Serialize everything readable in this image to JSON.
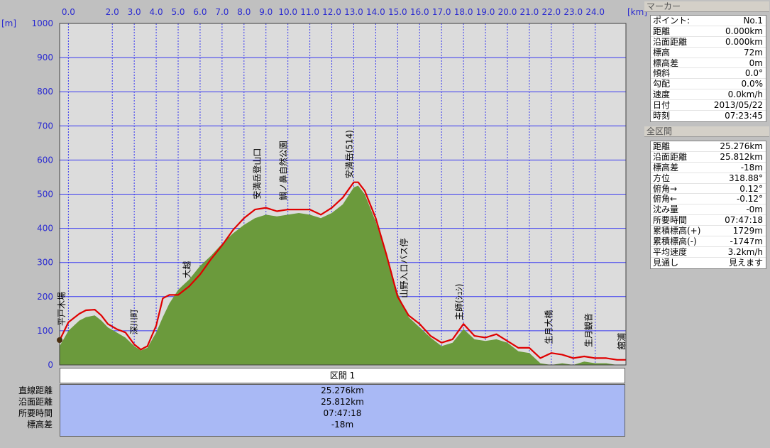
{
  "chart_data": {
    "type": "area",
    "x_unit": "[km]",
    "y_unit": "[m]",
    "xlim": [
      -0.4,
      25.4
    ],
    "ylim": [
      0,
      1000
    ],
    "x_ticks": [
      "0.0",
      "2.0",
      "3.0",
      "4.0",
      "5.0",
      "6.0",
      "7.0",
      "8.0",
      "9.0",
      "10.0",
      "11.0",
      "12.0",
      "13.0",
      "14.0",
      "15.0",
      "16.0",
      "17.0",
      "18.0",
      "19.0",
      "20.0",
      "21.0",
      "22.0",
      "23.0",
      "24.0"
    ],
    "y_ticks": [
      "1000",
      "900",
      "800",
      "700",
      "600",
      "500",
      "400",
      "300",
      "200",
      "100",
      "0"
    ],
    "grid": true,
    "series": [
      {
        "color": "#6b9a3c",
        "x": [
          -0.4,
          0.0,
          0.5,
          0.8,
          1.2,
          1.5,
          1.8,
          2.2,
          2.6,
          3.0,
          3.3,
          3.6,
          4.0,
          4.3,
          4.6,
          5.0,
          5.5,
          6.0,
          6.5,
          7.0,
          7.5,
          8.0,
          8.5,
          9.0,
          9.5,
          10.0,
          10.5,
          11.0,
          11.5,
          12.0,
          12.5,
          13.0,
          13.2,
          13.5,
          14.0,
          14.5,
          15.0,
          15.5,
          16.0,
          16.5,
          17.0,
          17.5,
          18.0,
          18.5,
          19.0,
          19.5,
          20.0,
          20.5,
          21.0,
          21.5,
          22.0,
          22.5,
          23.0,
          23.5,
          24.0,
          24.5,
          25.0,
          25.4
        ],
        "y": [
          55,
          100,
          130,
          140,
          145,
          130,
          110,
          95,
          80,
          55,
          42,
          50,
          95,
          140,
          180,
          220,
          250,
          290,
          320,
          355,
          385,
          410,
          430,
          440,
          435,
          440,
          445,
          440,
          430,
          445,
          470,
          520,
          525,
          500,
          420,
          320,
          210,
          140,
          110,
          80,
          55,
          65,
          105,
          75,
          70,
          75,
          65,
          40,
          35,
          5,
          0,
          5,
          0,
          10,
          5,
          5,
          0,
          0
        ]
      },
      {
        "color": "#e00000",
        "x": [
          -0.4,
          0.0,
          0.5,
          0.8,
          1.2,
          1.5,
          1.8,
          2.2,
          2.6,
          3.0,
          3.3,
          3.6,
          4.0,
          4.3,
          4.6,
          5.0,
          5.5,
          6.0,
          6.5,
          7.0,
          7.5,
          8.0,
          8.5,
          9.0,
          9.5,
          10.0,
          10.5,
          11.0,
          11.5,
          12.0,
          12.5,
          13.0,
          13.2,
          13.5,
          14.0,
          14.5,
          15.0,
          15.5,
          16.0,
          16.5,
          17.0,
          17.5,
          18.0,
          18.5,
          19.0,
          19.5,
          20.0,
          20.5,
          21.0,
          21.5,
          22.0,
          22.5,
          23.0,
          23.5,
          24.0,
          24.5,
          25.0,
          25.4
        ],
        "y": [
          72,
          125,
          150,
          160,
          162,
          145,
          120,
          105,
          95,
          60,
          45,
          55,
          115,
          195,
          205,
          205,
          230,
          265,
          310,
          350,
          395,
          430,
          455,
          460,
          450,
          455,
          455,
          455,
          440,
          460,
          490,
          535,
          535,
          510,
          430,
          320,
          200,
          145,
          120,
          85,
          65,
          75,
          120,
          85,
          80,
          90,
          70,
          50,
          50,
          20,
          35,
          30,
          20,
          25,
          20,
          20,
          15,
          15
        ]
      }
    ]
  },
  "peaks": [
    {
      "label": "平戸木場",
      "x": -0.3
    },
    {
      "label": "深川町",
      "x": 3.0
    },
    {
      "label": "大越",
      "x": 5.4
    },
    {
      "label": "安満岳登山口",
      "x": 8.6
    },
    {
      "label": "鯛ノ鼻自然公園",
      "x": 9.8
    },
    {
      "label": "安満岳(514)",
      "x": 12.8
    },
    {
      "label": "山野入口バス停",
      "x": 15.3
    },
    {
      "label": "主師(ｼｭｼ)",
      "x": 17.8
    },
    {
      "label": "生月大橋",
      "x": 21.9
    },
    {
      "label": "生月観音",
      "x": 23.7
    },
    {
      "label": "舘浦",
      "x": 25.2
    }
  ],
  "marker": {
    "title": "マーカー",
    "rows": [
      {
        "label": "ポイント:",
        "value": "No.1"
      },
      {
        "label": "距離",
        "value": "0.000km"
      },
      {
        "label": "沿面距離",
        "value": "0.000km"
      },
      {
        "label": "標高",
        "value": "72m"
      },
      {
        "label": "標高差",
        "value": "0m"
      },
      {
        "label": "傾斜",
        "value": "0.0°"
      },
      {
        "label": "勾配",
        "value": "0.0%"
      },
      {
        "label": "速度",
        "value": "0.0km/h"
      },
      {
        "label": "日付",
        "value": "2013/05/22"
      },
      {
        "label": "時刻",
        "value": "07:23:45"
      }
    ]
  },
  "whole": {
    "title": "全区間",
    "rows": [
      {
        "label": "距離",
        "value": "25.276km"
      },
      {
        "label": "沿面距離",
        "value": "25.812km"
      },
      {
        "label": "標高差",
        "value": "-18m"
      },
      {
        "label": "方位",
        "value": "318.88°"
      },
      {
        "label": "俯角→",
        "value": "0.12°"
      },
      {
        "label": "俯角←",
        "value": "-0.12°"
      },
      {
        "label": "沈み量",
        "value": "-0m"
      },
      {
        "label": "所要時間",
        "value": "07:47:18"
      },
      {
        "label": "累積標高(+)",
        "value": "1729m"
      },
      {
        "label": "累積標高(-)",
        "value": "-1747m"
      },
      {
        "label": "平均速度",
        "value": "3.2km/h"
      },
      {
        "label": "見通し",
        "value": "見えます"
      }
    ]
  },
  "section": {
    "title": "区間 1",
    "labels": [
      "直線距離",
      "沿面距離",
      "所要時間",
      "標高差"
    ],
    "values": [
      "25.276km",
      "25.812km",
      "07:47:18",
      "-18m"
    ]
  }
}
